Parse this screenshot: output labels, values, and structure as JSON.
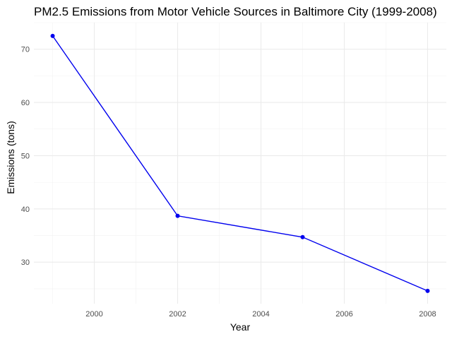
{
  "chart_data": {
    "type": "line",
    "title": "PM2.5 Emissions from Motor Vehicle Sources in Baltimore City (1999-2008)",
    "xlabel": "Year",
    "ylabel": "Emissions (tons)",
    "x": [
      1999,
      2002,
      2005,
      2008
    ],
    "series": [
      {
        "values": [
          72.5,
          38.7,
          34.7,
          24.6
        ],
        "color": "#0000ee"
      }
    ],
    "xlim": [
      1998.55,
      2008.45
    ],
    "ylim": [
      22.2,
      75.0
    ],
    "x_ticks": [
      2000,
      2002,
      2004,
      2006,
      2008
    ],
    "x_tick_labels": [
      "2000",
      "2002",
      "2004",
      "2006",
      "2008"
    ],
    "y_ticks": [
      30,
      40,
      50,
      60,
      70
    ],
    "y_tick_labels": [
      "30",
      "40",
      "50",
      "60",
      "70"
    ],
    "grid": true,
    "legend": "none"
  }
}
